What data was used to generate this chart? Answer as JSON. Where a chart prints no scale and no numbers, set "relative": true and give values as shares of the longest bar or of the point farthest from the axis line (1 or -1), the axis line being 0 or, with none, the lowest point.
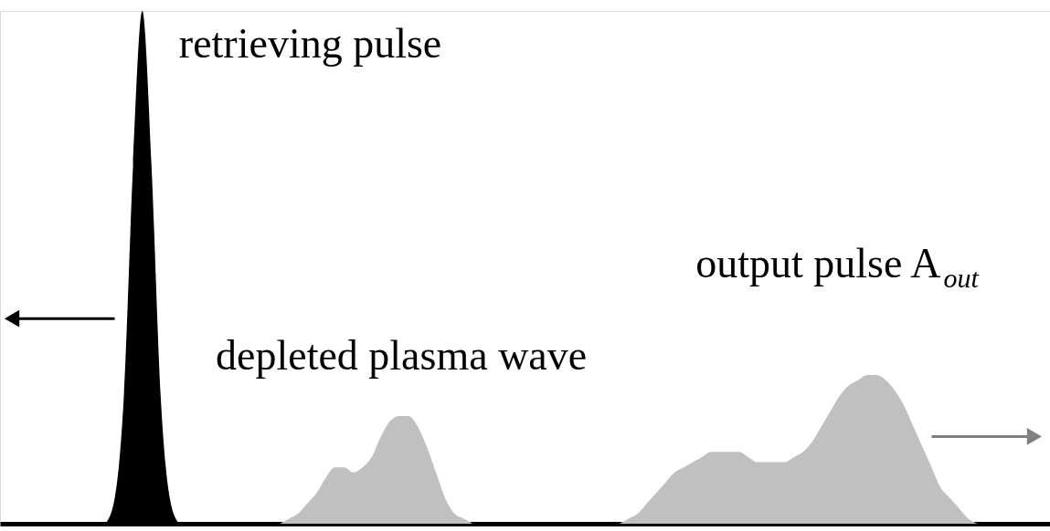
{
  "chart_data": {
    "type": "area",
    "relative": true,
    "grid": false,
    "categories": [
      null,
      null,
      null,
      null,
      null,
      null,
      null,
      null,
      null,
      null,
      null,
      null,
      null,
      null,
      null,
      null,
      null,
      null,
      null,
      null,
      null,
      null,
      null,
      null,
      null,
      null,
      null,
      null,
      null,
      null,
      null,
      null,
      null,
      null,
      null,
      null,
      null,
      null,
      null,
      null,
      null,
      null,
      null,
      null,
      null,
      null,
      null,
      null,
      null,
      null,
      null,
      null,
      null,
      null,
      null,
      null,
      null,
      null,
      null,
      null,
      null,
      null,
      null,
      null,
      null,
      null,
      null,
      null,
      null,
      null,
      null,
      null,
      null,
      null,
      null,
      null,
      null,
      null,
      null,
      null,
      null,
      null,
      null,
      null,
      null,
      null,
      null,
      null,
      null,
      null,
      null,
      null,
      null,
      null,
      null,
      null,
      null,
      null,
      null,
      null,
      null,
      null,
      null,
      null,
      null,
      null,
      null,
      null,
      null
    ],
    "series": [
      {
        "name": "retrieving pulse",
        "color": "#000000",
        "values": [
          null,
          null,
          null,
          null,
          null,
          null,
          0,
          0.05,
          0.25,
          0.7,
          1,
          0.7,
          0.25,
          0.05,
          0,
          null,
          null,
          null,
          null,
          null,
          null,
          null,
          null,
          null,
          null,
          null,
          null,
          null,
          null,
          null,
          null,
          null,
          null,
          null,
          null,
          null,
          null,
          null,
          null,
          null,
          null,
          null,
          null,
          null,
          null,
          null,
          null,
          null,
          null,
          null,
          null,
          null,
          null,
          null,
          null,
          null,
          null,
          null,
          null,
          null,
          null,
          null,
          null,
          null,
          null,
          null,
          null,
          null,
          null,
          null,
          null,
          null,
          null,
          null,
          null,
          null,
          null,
          null,
          null,
          null,
          null,
          null,
          null,
          null,
          null,
          null,
          null,
          null,
          null,
          null,
          null,
          null,
          null,
          null,
          null,
          null,
          null,
          null,
          null,
          null,
          null,
          null,
          null,
          null,
          null,
          null,
          null,
          null,
          null
        ]
      },
      {
        "name": "depleted plasma wave",
        "color": "#c0c0c0",
        "values": [
          null,
          null,
          null,
          null,
          null,
          null,
          null,
          null,
          null,
          null,
          null,
          null,
          null,
          null,
          null,
          null,
          null,
          null,
          null,
          null,
          null,
          null,
          null,
          null,
          null,
          0,
          0.01,
          0.02,
          0.04,
          0.06,
          0.09,
          0.11,
          0.11,
          0.1,
          0.11,
          0.13,
          0.17,
          0.2,
          0.21,
          0.21,
          0.19,
          0.15,
          0.1,
          0.05,
          0.02,
          0.01,
          0,
          null,
          null,
          null,
          null,
          null,
          null,
          null,
          null,
          null,
          null,
          null,
          null,
          null,
          null,
          null,
          null,
          null,
          null,
          null,
          null,
          null,
          null,
          null,
          null,
          null,
          null,
          null,
          null,
          null,
          null,
          null,
          null,
          null,
          null,
          null,
          null,
          null,
          null,
          null,
          null,
          null,
          null,
          null,
          null,
          null,
          null,
          null,
          null,
          null,
          null,
          null,
          null,
          null,
          null,
          null,
          null,
          null,
          null,
          null,
          null,
          null,
          null
        ]
      },
      {
        "name": "output pulse A$_{out}$",
        "color": "#c0c0c0",
        "values": [
          null,
          null,
          null,
          null,
          null,
          null,
          null,
          null,
          null,
          null,
          null,
          null,
          null,
          null,
          null,
          null,
          null,
          null,
          null,
          null,
          null,
          null,
          null,
          null,
          null,
          null,
          null,
          null,
          null,
          null,
          null,
          null,
          null,
          null,
          null,
          null,
          null,
          null,
          null,
          null,
          null,
          null,
          null,
          null,
          null,
          null,
          null,
          null,
          null,
          null,
          null,
          null,
          null,
          null,
          null,
          null,
          null,
          null,
          null,
          null,
          null,
          null,
          0,
          0.01,
          0.02,
          0.04,
          0.06,
          0.08,
          0.1,
          0.11,
          0.12,
          0.13,
          0.14,
          0.14,
          0.14,
          0.14,
          0.13,
          0.12,
          0.12,
          0.12,
          0.12,
          0.13,
          0.14,
          0.16,
          0.19,
          0.22,
          0.25,
          0.27,
          0.28,
          0.29,
          0.29,
          0.28,
          0.26,
          0.23,
          0.19,
          0.15,
          0.11,
          0.07,
          0.05,
          0.03,
          0.01,
          0,
          null,
          null,
          null,
          null,
          null,
          null,
          null
        ]
      }
    ]
  }
}
